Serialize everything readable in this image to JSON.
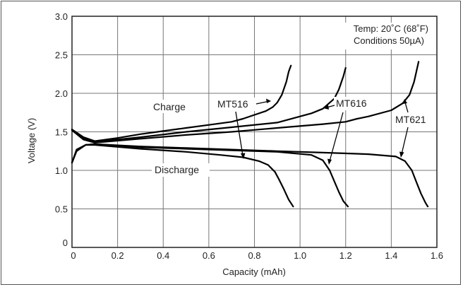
{
  "chart_data": {
    "type": "line",
    "xlabel": "Capacity (mAh)",
    "ylabel": "Voltage (V)",
    "xlim": [
      0,
      1.6
    ],
    "ylim": [
      0,
      3.0
    ],
    "grid": true,
    "x_ticks": [
      "0",
      "0.2",
      "0.4",
      "0.6",
      "0.8",
      "1.0",
      "1.2",
      "1.4",
      "1.6"
    ],
    "y_ticks": [
      "0",
      "0.5",
      "1.0",
      "1.5",
      "2.0",
      "2.5",
      "3.0"
    ],
    "notes": [
      "Temp: 20˚C (68˚F)",
      "Conditions 50µA)"
    ],
    "annotations": {
      "charge": "Charge",
      "discharge": "Discharge",
      "mt516": "MT516",
      "mt616": "MT616",
      "mt621": "MT621"
    },
    "series": [
      {
        "name": "MT516",
        "kind": "charge",
        "x": [
          0,
          0.05,
          0.1,
          0.2,
          0.3,
          0.4,
          0.5,
          0.6,
          0.7,
          0.75,
          0.8,
          0.85,
          0.88,
          0.9,
          0.92,
          0.94,
          0.95,
          0.96
        ],
        "y": [
          1.53,
          1.43,
          1.38,
          1.42,
          1.47,
          1.51,
          1.55,
          1.59,
          1.63,
          1.67,
          1.72,
          1.77,
          1.82,
          1.88,
          1.98,
          2.15,
          2.28,
          2.36
        ]
      },
      {
        "name": "MT516",
        "kind": "discharge",
        "x": [
          0,
          0.02,
          0.06,
          0.1,
          0.3,
          0.5,
          0.65,
          0.75,
          0.82,
          0.86,
          0.89,
          0.91,
          0.93,
          0.95,
          0.97
        ],
        "y": [
          1.1,
          1.25,
          1.33,
          1.33,
          1.28,
          1.24,
          1.2,
          1.17,
          1.12,
          1.07,
          0.98,
          0.87,
          0.75,
          0.62,
          0.53
        ]
      },
      {
        "name": "MT616",
        "kind": "charge",
        "x": [
          0,
          0.05,
          0.1,
          0.3,
          0.5,
          0.7,
          0.9,
          0.95,
          1.0,
          1.05,
          1.1,
          1.15,
          1.17,
          1.19,
          1.2
        ],
        "y": [
          1.53,
          1.42,
          1.37,
          1.43,
          1.5,
          1.56,
          1.62,
          1.66,
          1.7,
          1.74,
          1.8,
          1.93,
          2.05,
          2.22,
          2.33
        ]
      },
      {
        "name": "MT616",
        "kind": "discharge",
        "x": [
          0,
          0.02,
          0.06,
          0.1,
          0.3,
          0.5,
          0.7,
          0.9,
          1.05,
          1.1,
          1.13,
          1.15,
          1.17,
          1.19,
          1.21
        ],
        "y": [
          1.1,
          1.26,
          1.33,
          1.34,
          1.3,
          1.28,
          1.26,
          1.24,
          1.2,
          1.13,
          1.0,
          0.86,
          0.72,
          0.6,
          0.53
        ]
      },
      {
        "name": "MT621",
        "kind": "charge",
        "x": [
          0,
          0.05,
          0.1,
          0.3,
          0.5,
          0.7,
          0.9,
          1.1,
          1.2,
          1.25,
          1.3,
          1.4,
          1.45,
          1.48,
          1.5,
          1.52
        ],
        "y": [
          1.52,
          1.4,
          1.36,
          1.41,
          1.46,
          1.5,
          1.55,
          1.6,
          1.63,
          1.67,
          1.7,
          1.78,
          1.87,
          1.98,
          2.15,
          2.41
        ]
      },
      {
        "name": "MT621",
        "kind": "discharge",
        "x": [
          0,
          0.02,
          0.06,
          0.1,
          0.3,
          0.5,
          0.7,
          0.9,
          1.1,
          1.3,
          1.42,
          1.46,
          1.49,
          1.51,
          1.53,
          1.55,
          1.56
        ],
        "y": [
          1.1,
          1.27,
          1.33,
          1.34,
          1.31,
          1.29,
          1.27,
          1.25,
          1.23,
          1.21,
          1.18,
          1.12,
          1.0,
          0.85,
          0.7,
          0.58,
          0.53
        ]
      }
    ]
  }
}
